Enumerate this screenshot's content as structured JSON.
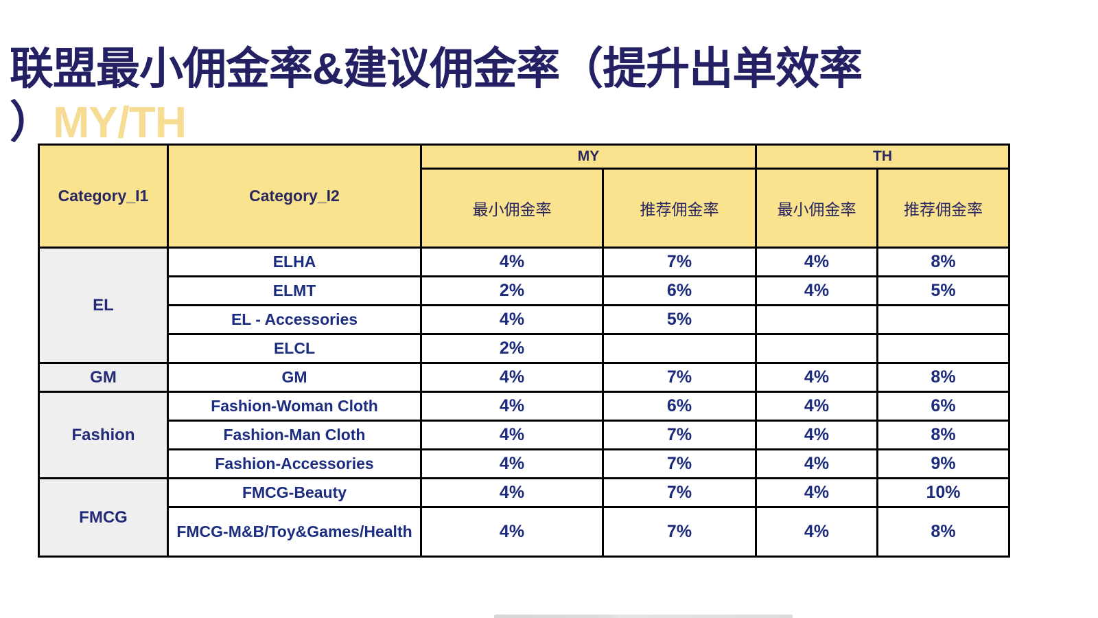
{
  "title": {
    "line1": "联盟最小佣金率&建议佣金率（提升出单效率",
    "line2_paren": "）",
    "line2_market": "MY/TH"
  },
  "colors": {
    "title_navy": "#232064",
    "title_gold": "#f7dc94",
    "header_yellow": "#fae38f",
    "group_gray": "#efefef",
    "body_text_blue": "#1b2a7b",
    "border": "#000000"
  },
  "table": {
    "headers": {
      "category_l1": "Category_I1",
      "category_l2": "Category_I2",
      "market_my": "MY",
      "market_th": "TH",
      "my_min": "最小佣金率",
      "my_rec": "推荐佣金率",
      "th_min": "最小佣金率",
      "th_rec": "推荐佣金率"
    },
    "groups": [
      {
        "category_l1": "EL",
        "rows": [
          {
            "category_l2": "ELHA",
            "my_min": "4%",
            "my_rec": "7%",
            "th_min": "4%",
            "th_rec": "8%"
          },
          {
            "category_l2": "ELMT",
            "my_min": "2%",
            "my_rec": "6%",
            "th_min": "4%",
            "th_rec": "5%"
          },
          {
            "category_l2": "EL - Accessories",
            "my_min": "4%",
            "my_rec": "5%",
            "th_min": "",
            "th_rec": ""
          },
          {
            "category_l2": "ELCL",
            "my_min": "2%",
            "my_rec": "",
            "th_min": "",
            "th_rec": ""
          }
        ]
      },
      {
        "category_l1": "GM",
        "rows": [
          {
            "category_l2": "GM",
            "my_min": "4%",
            "my_rec": "7%",
            "th_min": "4%",
            "th_rec": "8%"
          }
        ]
      },
      {
        "category_l1": "Fashion",
        "rows": [
          {
            "category_l2": "Fashion-Woman Cloth",
            "my_min": "4%",
            "my_rec": "6%",
            "th_min": "4%",
            "th_rec": "6%"
          },
          {
            "category_l2": "Fashion-Man Cloth",
            "my_min": "4%",
            "my_rec": "7%",
            "th_min": "4%",
            "th_rec": "8%"
          },
          {
            "category_l2": "Fashion-Accessories",
            "my_min": "4%",
            "my_rec": "7%",
            "th_min": "4%",
            "th_rec": "9%"
          }
        ]
      },
      {
        "category_l1": "FMCG",
        "rows": [
          {
            "category_l2": "FMCG-Beauty",
            "my_min": "4%",
            "my_rec": "7%",
            "th_min": "4%",
            "th_rec": "10%"
          },
          {
            "category_l2": "FMCG-M&B/Toy&Games/Health",
            "my_min": "4%",
            "my_rec": "7%",
            "th_min": "4%",
            "th_rec": "8%"
          }
        ]
      }
    ]
  }
}
